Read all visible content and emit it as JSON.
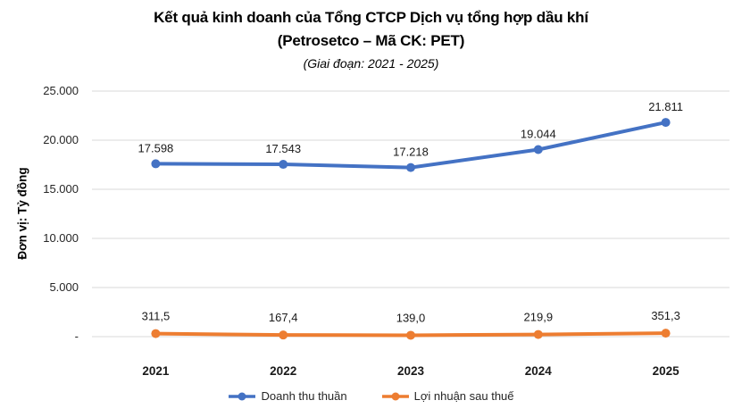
{
  "chart_data": {
    "type": "line",
    "title": "Kết quả kinh doanh của Tổng CTCP Dịch vụ tổng hợp dầu khí",
    "title_line2": "(Petrosetco – Mã CK: PET)",
    "subtitle": "(Giai đoạn: 2021 - 2025)",
    "ylabel": "Đơn vị: Tỷ đồng",
    "categories": [
      "2021",
      "2022",
      "2023",
      "2024",
      "2025"
    ],
    "series": [
      {
        "name": "Doanh thu thuần",
        "color": "#4472C4",
        "values": [
          17598,
          17543,
          17218,
          19044,
          21811
        ],
        "labels": [
          "17.598",
          "17.543",
          "17.218",
          "19.044",
          "21.811"
        ]
      },
      {
        "name": "Lợi nhuận sau thuế",
        "color": "#ED7D31",
        "values": [
          311.5,
          167.4,
          139.0,
          219.9,
          351.3
        ],
        "labels": [
          "311,5",
          "167,4",
          "139,0",
          "219,9",
          "351,3"
        ]
      }
    ],
    "ylim": [
      0,
      25000
    ],
    "ytick_interval": 5000,
    "ytick_labels": [
      "-",
      "5.000",
      "10.000",
      "15.000",
      "20.000",
      "25.000"
    ],
    "grid": true,
    "gridline_color": "#D9D9D9",
    "legend_position": "bottom"
  }
}
